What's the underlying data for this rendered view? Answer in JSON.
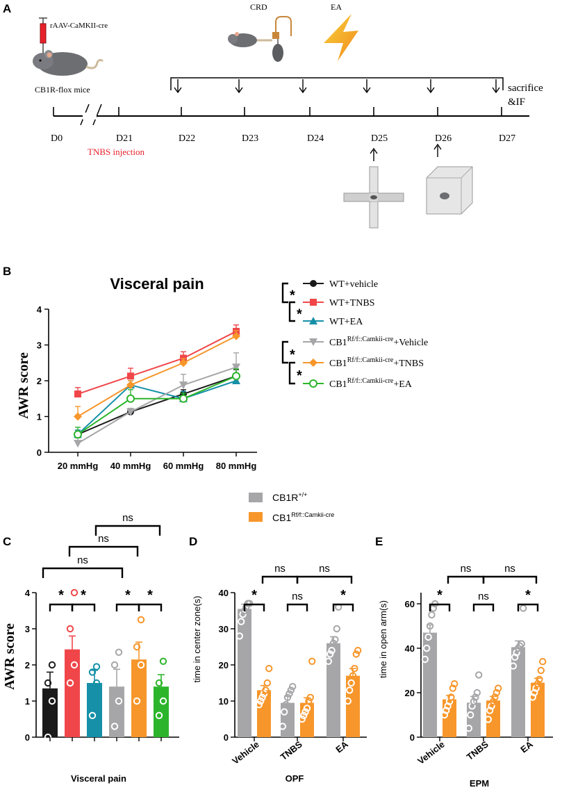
{
  "panel_labels": [
    "A",
    "B",
    "C",
    "D",
    "E"
  ],
  "timeline": {
    "virus_label": "rAAV-CaMKII-cre",
    "mouse_label": "CB1R-flox mice",
    "crd_label": "CRD",
    "ea_label": "EA",
    "end_label_line1": "sacrifice",
    "end_label_line2": "&IF",
    "days": [
      "D0",
      "D21",
      "D22",
      "D23",
      "D24",
      "D25",
      "D26",
      "D27"
    ],
    "injection_label": "TNBS injection",
    "colors": {
      "injection": "#e8202a",
      "syringe": "#e8202a"
    }
  },
  "legend_b": [
    {
      "base": "WT+vehicle",
      "sup": "",
      "tail": ""
    },
    {
      "base": "WT+TNBS",
      "sup": "",
      "tail": ""
    },
    {
      "base": "WT+EA",
      "sup": "",
      "tail": ""
    },
    {
      "base": "CB1",
      "sup": "Rf/f::Camkii-cre",
      "tail": "+Vehicle"
    },
    {
      "base": "CB1",
      "sup": "Rf/f::Camkii-cre",
      "tail": "+TNBS"
    },
    {
      "base": "CB1",
      "sup": "Rf/f::Camkii-cre",
      "tail": "+EA"
    }
  ],
  "sig_b": [
    "*",
    "*",
    "*",
    "*"
  ],
  "legend_de": [
    {
      "base": "CB1R",
      "sup": "+/+"
    },
    {
      "base": "CB1",
      "sup": "Rf/f::Camkii-cre"
    }
  ],
  "chart_data": [
    {
      "id": "B",
      "type": "line",
      "title": "Visceral pain",
      "xlabel": "",
      "ylabel": "AWR score",
      "categories": [
        "20 mmHg",
        "40 mmHg",
        "60 mmHg",
        "80 mmHg"
      ],
      "ylim": [
        0,
        4
      ],
      "yticks": [
        "0",
        "1",
        "2",
        "3",
        "4"
      ],
      "series": [
        {
          "name": "WT+vehicle",
          "color": "#1a1a1a",
          "marker": "circle",
          "values": [
            0.5,
            1.13,
            1.63,
            2.13
          ],
          "err": [
            0.12,
            0.08,
            0.12,
            0.18
          ]
        },
        {
          "name": "WT+TNBS",
          "color": "#f0464a",
          "marker": "square",
          "values": [
            1.63,
            2.13,
            2.63,
            3.38
          ],
          "err": [
            0.18,
            0.22,
            0.18,
            0.18
          ]
        },
        {
          "name": "WT+EA",
          "color": "#1590a8",
          "marker": "triangle",
          "values": [
            0.5,
            1.88,
            1.5,
            2.0
          ],
          "err": [
            0.12,
            0.12,
            0.2,
            0.1
          ]
        },
        {
          "name": "CB1Rf/f::Camkii-cre+Vehicle",
          "color": "#a6a6a8",
          "marker": "triangle-down",
          "values": [
            0.25,
            1.13,
            1.88,
            2.38
          ],
          "err": [
            0.15,
            0.1,
            0.3,
            0.4
          ]
        },
        {
          "name": "CB1Rf/f::Camkii-cre+TNBS",
          "color": "#f7962a",
          "marker": "diamond",
          "values": [
            1.0,
            1.88,
            2.5,
            3.25
          ],
          "err": [
            0.28,
            0.12,
            0.12,
            0.15
          ]
        },
        {
          "name": "CB1Rf/f::Camkii-cre+EA",
          "color": "#2cb52c",
          "marker": "open-circle",
          "values": [
            0.5,
            1.5,
            1.5,
            2.13
          ],
          "err": [
            0.2,
            0.25,
            0.15,
            0.2
          ]
        }
      ]
    },
    {
      "id": "C",
      "type": "bar",
      "title": "",
      "xlabel": "Visceral pain",
      "ylabel": "AWR score",
      "ylim": [
        0,
        4
      ],
      "yticks": [
        "0",
        "1",
        "2",
        "3",
        "4"
      ],
      "groups": [
        {
          "color": "#1a1a1a",
          "value": 1.35,
          "err": 0.45,
          "points": [
            0,
            1,
            1.5,
            2
          ]
        },
        {
          "color": "#f0464a",
          "value": 2.43,
          "err": 0.37,
          "points": [
            1.5,
            2,
            3,
            4
          ]
        },
        {
          "color": "#1590a8",
          "value": 1.5,
          "err": 0.35,
          "points": [
            0.6,
            1.5,
            1.8,
            1.95
          ]
        },
        {
          "color": "#a6a6a8",
          "value": 1.4,
          "err": 0.48,
          "points": [
            0.3,
            1.0,
            2.0,
            2.35
          ]
        },
        {
          "color": "#f7962a",
          "value": 2.15,
          "err": 0.48,
          "points": [
            1.0,
            2.0,
            2.5,
            3.25
          ]
        },
        {
          "color": "#2cb52c",
          "value": 1.4,
          "err": 0.33,
          "points": [
            0.6,
            1.0,
            1.5,
            2.1
          ]
        }
      ],
      "comparisons": [
        {
          "a": 0,
          "b": 1,
          "label": "*"
        },
        {
          "a": 1,
          "b": 2,
          "label": "*"
        },
        {
          "a": 3,
          "b": 4,
          "label": "*"
        },
        {
          "a": 4,
          "b": 5,
          "label": "*"
        },
        {
          "a": 0,
          "b": 3,
          "label": ""
        },
        {
          "a": 1,
          "b": 4,
          "label": "ns"
        },
        {
          "a": 2,
          "b": 5,
          "label": "ns"
        },
        {
          "a": 0,
          "b": 3,
          "label": "ns"
        }
      ]
    },
    {
      "id": "D",
      "type": "bar",
      "title": "",
      "xlabel": "OPF",
      "ylabel": "time in center zone(s)",
      "ylim": [
        0,
        40
      ],
      "yticks": [
        "0",
        "10",
        "20",
        "30",
        "40"
      ],
      "categories": [
        "Vehicle",
        "TNBS",
        "EA"
      ],
      "series": [
        {
          "name": "CB1R+/+",
          "color": "#a6a6a8",
          "values": [
            35.5,
            9.5,
            26.0
          ],
          "err": [
            1.3,
            1.8,
            1.8
          ],
          "points": [
            [
              28,
              32,
              34,
              35,
              36,
              37,
              37
            ]
          ],
          "pts": [
            [
              28,
              32,
              34,
              35,
              36,
              37,
              37
            ],
            [
              3,
              7,
              9,
              11,
              12,
              13,
              14
            ],
            [
              21,
              23,
              24,
              26,
              27,
              30,
              36
            ]
          ]
        },
        {
          "name": "CB1Rf/f::Camkii-cre",
          "color": "#f7962a",
          "values": [
            13.0,
            9.5,
            17.0
          ],
          "err": [
            1.3,
            1.4,
            2.0
          ],
          "pts": [
            [
              9,
              10,
              11,
              12,
              13,
              15,
              19
            ],
            [
              5,
              6,
              7,
              8,
              10,
              11,
              21
            ],
            [
              10,
              13,
              15,
              17,
              19,
              23,
              24
            ]
          ]
        }
      ],
      "comparisons": [
        {
          "label": "*",
          "level": 1
        },
        {
          "label": "ns",
          "level": 1
        },
        {
          "label": "*",
          "level": 1
        },
        {
          "label": "ns",
          "level": 2
        },
        {
          "label": "ns",
          "level": 2
        }
      ]
    },
    {
      "id": "E",
      "type": "bar",
      "title": "",
      "xlabel": "EPM",
      "ylabel": "time in open arm(s)",
      "ylim": [
        0,
        65
      ],
      "yticks": [
        "0",
        "20",
        "40",
        "60"
      ],
      "yticks_values": [
        0,
        20,
        40,
        60
      ],
      "categories": [
        "Vehicle",
        "TNBS",
        "EA"
      ],
      "series": [
        {
          "name": "CB1R+/+",
          "color": "#a6a6a8",
          "values": [
            47.0,
            15.5,
            40.5
          ],
          "err": [
            3.5,
            2.8,
            2.8
          ],
          "pts": [
            [
              35,
              40,
              45,
              50,
              55,
              58,
              60
            ],
            [
              4,
              10,
              14,
              16,
              18,
              20,
              28
            ],
            [
              32,
              36,
              38,
              40,
              41,
              42,
              58
            ]
          ]
        },
        {
          "name": "CB1Rf/f::Camkii-cre",
          "color": "#f7962a",
          "values": [
            17.0,
            16.5,
            24.5
          ],
          "err": [
            1.8,
            1.8,
            2.0
          ],
          "pts": [
            [
              10,
              12,
              14,
              16,
              18,
              22,
              24
            ],
            [
              8,
              12,
              14,
              16,
              18,
              20,
              22
            ],
            [
              18,
              20,
              22,
              24,
              26,
              30,
              34
            ]
          ]
        }
      ],
      "comparisons": [
        {
          "label": "*",
          "level": 1
        },
        {
          "label": "ns",
          "level": 1
        },
        {
          "label": "*",
          "level": 1
        },
        {
          "label": "ns",
          "level": 2
        },
        {
          "label": "ns",
          "level": 2
        }
      ]
    }
  ]
}
